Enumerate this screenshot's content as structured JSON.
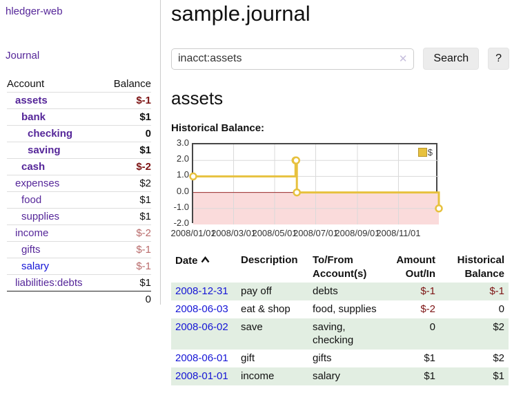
{
  "sidebar": {
    "brand": "hledger-web",
    "nav_journal": "Journal",
    "table": {
      "col_account": "Account",
      "col_balance": "Balance",
      "accounts": [
        {
          "name": "assets",
          "balance": "$-1"
        },
        {
          "name": "bank",
          "balance": "$1"
        },
        {
          "name": "checking",
          "balance": "0"
        },
        {
          "name": "saving",
          "balance": "$1"
        },
        {
          "name": "cash",
          "balance": "$-2"
        },
        {
          "name": "expenses",
          "balance": "$2"
        },
        {
          "name": "food",
          "balance": "$1"
        },
        {
          "name": "supplies",
          "balance": "$1"
        },
        {
          "name": "income",
          "balance": "$-2"
        },
        {
          "name": "gifts",
          "balance": "$-1"
        },
        {
          "name": "salary",
          "balance": "$-1"
        },
        {
          "name": "liabilities:debts",
          "balance": "$1"
        }
      ],
      "total": "0"
    }
  },
  "header": {
    "title": "sample.journal"
  },
  "search": {
    "query": "inacct:assets",
    "clear_icon": "✕",
    "button_label": "Search",
    "help_label": "?"
  },
  "page": {
    "heading": "assets",
    "chart_title": "Historical Balance:"
  },
  "chart_data": {
    "type": "line",
    "title": "Historical Balance:",
    "step": true,
    "x_range": [
      "2008-01-01",
      "2008-12-31"
    ],
    "ylim": [
      -2,
      3
    ],
    "grid": true,
    "legend_position": "top-right",
    "series": [
      {
        "name": "$",
        "color": "#e7c13e",
        "points": [
          [
            "2008-01-01",
            1
          ],
          [
            "2008-06-01",
            2
          ],
          [
            "2008-06-02",
            2
          ],
          [
            "2008-06-03",
            0
          ],
          [
            "2008-12-31",
            -1
          ]
        ]
      }
    ],
    "y_ticks": [
      {
        "v": 3,
        "label": "3.0"
      },
      {
        "v": 2,
        "label": "2.0"
      },
      {
        "v": 1,
        "label": "1.0"
      },
      {
        "v": 0,
        "label": "0.0"
      },
      {
        "v": -1,
        "label": "-1.0"
      },
      {
        "v": -2,
        "label": "-2.0"
      }
    ],
    "x_ticks": [
      {
        "date": "2008-01-01",
        "label": "2008/01/01"
      },
      {
        "date": "2008-03-01",
        "label": "2008/03/01"
      },
      {
        "date": "2008-05-01",
        "label": "2008/05/01"
      },
      {
        "date": "2008-07-01",
        "label": "2008/07/01"
      },
      {
        "date": "2008-09-01",
        "label": "2008/09/01"
      },
      {
        "date": "2008-11-01",
        "label": "2008/11/01"
      }
    ],
    "negative_region_color": "#fadbdb",
    "zero_line_color": "#9c2a2a"
  },
  "register": {
    "headers": {
      "date": "Date",
      "description": "Description",
      "tofrom1": "To/From",
      "tofrom2": "Account(s)",
      "amount1": "Amount",
      "amount2": "Out/In",
      "hist1": "Historical",
      "hist2": "Balance"
    },
    "sort_icon": "chevron-up",
    "rows": [
      {
        "date": "2008-12-31",
        "description": "pay off",
        "accounts": "debts",
        "amount": "$-1",
        "balance": "$-1"
      },
      {
        "date": "2008-06-03",
        "description": "eat & shop",
        "accounts": "food, supplies",
        "amount": "$-2",
        "balance": "0"
      },
      {
        "date": "2008-06-02",
        "description": "save",
        "accounts": "saving, checking",
        "amount": "0",
        "balance": "$2"
      },
      {
        "date": "2008-06-01",
        "description": "gift",
        "accounts": "gifts",
        "amount": "$1",
        "balance": "$2"
      },
      {
        "date": "2008-01-01",
        "description": "income",
        "accounts": "salary",
        "amount": "$1",
        "balance": "$1"
      }
    ]
  },
  "colors": {
    "accent_purple": "#552699",
    "link_blue": "#1515d6",
    "negative": "#7d1414",
    "negative_dim": "#b96b6b",
    "row_green": "#e2eee2",
    "chart_line": "#e7c13e"
  }
}
